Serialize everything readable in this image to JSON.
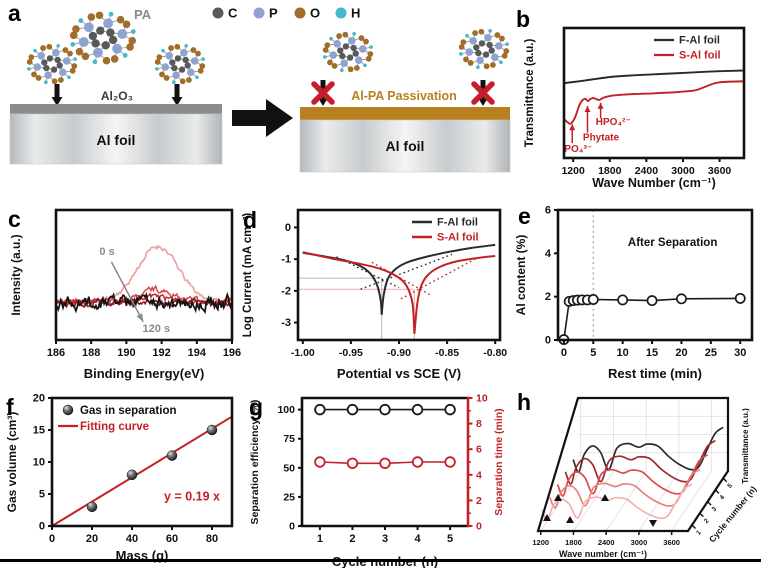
{
  "figure": {
    "panels": {
      "a": "a",
      "b": "b",
      "c": "c",
      "d": "d",
      "e": "e",
      "f": "f",
      "g": "g",
      "h": "h"
    }
  },
  "panel_a": {
    "pa_label": "PA",
    "atom_legend": [
      {
        "label": "C",
        "color": "#58595b"
      },
      {
        "label": "P",
        "color": "#8fa3d0"
      },
      {
        "label": "O",
        "color": "#a06e2a"
      },
      {
        "label": "H",
        "color": "#45b8c9"
      }
    ],
    "left": {
      "layer_label": "Al₂O₃",
      "substrate_label": "Al foil"
    },
    "right": {
      "passivation_label": "Al-PA Passivation",
      "substrate_label": "Al foil"
    }
  },
  "chart_data": [
    {
      "id": "b",
      "type": "line",
      "xlabel": "Wave Number (cm⁻¹)",
      "ylabel": "Transmittance (a.u.)",
      "xlim": [
        1050,
        4000
      ],
      "xticks": [
        1200,
        1800,
        2400,
        3000,
        3600
      ],
      "ylim": [
        0,
        1
      ],
      "legend": [
        {
          "name": "F-Al foil",
          "color": "#2a2a2a"
        },
        {
          "name": "S-Al foil",
          "color": "#c22126"
        }
      ],
      "series": [
        {
          "name": "F-Al foil",
          "color": "#2a2a2a",
          "points": [
            [
              1050,
              0.575
            ],
            [
              1200,
              0.585
            ],
            [
              1400,
              0.597
            ],
            [
              1600,
              0.61
            ],
            [
              1800,
              0.623
            ],
            [
              2000,
              0.631
            ],
            [
              2400,
              0.641
            ],
            [
              2800,
              0.65
            ],
            [
              3200,
              0.659
            ],
            [
              3600,
              0.668
            ],
            [
              4000,
              0.673
            ]
          ]
        },
        {
          "name": "S-Al foil",
          "color": "#c22126",
          "points": [
            [
              1050,
              0.3
            ],
            [
              1100,
              0.278
            ],
            [
              1150,
              0.263
            ],
            [
              1200,
              0.285
            ],
            [
              1250,
              0.335
            ],
            [
              1300,
              0.405
            ],
            [
              1350,
              0.443
            ],
            [
              1400,
              0.455
            ],
            [
              1440,
              0.438
            ],
            [
              1480,
              0.453
            ],
            [
              1530,
              0.462
            ],
            [
              1580,
              0.452
            ],
            [
              1630,
              0.447
            ],
            [
              1690,
              0.462
            ],
            [
              1760,
              0.472
            ],
            [
              1850,
              0.48
            ],
            [
              2000,
              0.487
            ],
            [
              2200,
              0.492
            ],
            [
              2500,
              0.497
            ],
            [
              2800,
              0.504
            ],
            [
              3000,
              0.511
            ],
            [
              3200,
              0.521
            ],
            [
              3350,
              0.545
            ],
            [
              3500,
              0.572
            ],
            [
              3650,
              0.585
            ],
            [
              4000,
              0.59
            ]
          ]
        }
      ],
      "annotations": [
        {
          "text": "PO₄³⁻",
          "label_x": 1055,
          "label_y": 0.045,
          "arrow_x": 1185,
          "arrow_y1": 0.115,
          "arrow_y2": 0.26
        },
        {
          "text": "Phytate",
          "label_x": 1360,
          "label_y": 0.135,
          "arrow_x": 1435,
          "arrow_y1": 0.195,
          "arrow_y2": 0.4
        },
        {
          "text": "HPO₄²⁻",
          "label_x": 1570,
          "label_y": 0.255,
          "arrow_x": 1650,
          "arrow_y1": 0.305,
          "arrow_y2": 0.425
        }
      ]
    },
    {
      "id": "c",
      "type": "line",
      "xlabel": "Binding Energy(eV)",
      "ylabel": "Intensity (a.u.)",
      "xlim": [
        186,
        196
      ],
      "xticks": [
        186,
        188,
        190,
        192,
        194,
        196
      ],
      "ylim": [
        0,
        1
      ],
      "series": [
        {
          "name": "0 s",
          "color": "#eda3a1",
          "baseline": 0.3,
          "amp": 0.42,
          "center": 191.8,
          "sigma": 1.15,
          "noise": 0.016,
          "width": 1.7
        },
        {
          "name": "",
          "color": "#d4494e",
          "baseline": 0.3,
          "amp": 0.09,
          "center": 191.6,
          "sigma": 0.9,
          "noise": 0.02,
          "width": 1.5
        },
        {
          "name": "",
          "color": "#c1272d",
          "baseline": 0.29,
          "amp": 0.045,
          "center": 191.4,
          "sigma": 0.85,
          "noise": 0.018,
          "width": 1.5
        },
        {
          "name": "",
          "color": "#8c1c21",
          "baseline": 0.285,
          "amp": 0,
          "center": 191.5,
          "sigma": 1,
          "noise": 0.022,
          "width": 1.5
        },
        {
          "name": "120 s",
          "color": "#141414",
          "baseline": 0.29,
          "amp": 0,
          "center": 191,
          "sigma": 1,
          "noise": 0.045,
          "width": 1.7
        }
      ],
      "annotations": [
        {
          "text": "0 s",
          "x": 188.9,
          "y": 0.655
        },
        {
          "text": "120 s",
          "x": 191.7,
          "y": 0.06
        }
      ],
      "arrow": {
        "x1": 189.15,
        "y1": 0.6,
        "x2": 190.95,
        "y2": 0.14,
        "color": "#8a8a8a"
      }
    },
    {
      "id": "d",
      "type": "line",
      "xlabel": "Potential vs SCE (V)",
      "ylabel": "Log Current (mA cm⁻²)",
      "xlim": [
        -1.005,
        -0.795
      ],
      "xticks": [
        -1,
        -0.95,
        -0.9,
        -0.85,
        -0.8
      ],
      "xtick_labels": [
        "-1.00",
        "-0.95",
        "-0.90",
        "-0.85",
        "-0.80"
      ],
      "ylim": [
        -3.55,
        0.55
      ],
      "yticks": [
        0,
        -1,
        -2,
        -3
      ],
      "legend": [
        {
          "name": "F-Al foil",
          "color": "#2a2a2a"
        },
        {
          "name": "S-Al foil",
          "color": "#c22126"
        }
      ],
      "series": [
        {
          "name": "F-Al foil",
          "color": "#2a2a2a",
          "left": [
            [
              -1,
              -0.8
            ],
            [
              -0.975,
              -0.93
            ],
            [
              -0.955,
              -1.05
            ],
            [
              -0.94,
              -1.22
            ],
            [
              -0.93,
              -1.45
            ],
            [
              -0.923,
              -1.8
            ],
            [
              -0.919,
              -2.3
            ],
            [
              -0.918,
              -2.75
            ]
          ],
          "right": [
            [
              -0.918,
              -2.75
            ],
            [
              -0.916,
              -2.15
            ],
            [
              -0.912,
              -1.65
            ],
            [
              -0.905,
              -1.35
            ],
            [
              -0.893,
              -1.12
            ],
            [
              -0.875,
              -0.95
            ],
            [
              -0.85,
              -0.78
            ],
            [
              -0.825,
              -0.65
            ],
            [
              -0.8,
              -0.55
            ]
          ]
        },
        {
          "name": "S-Al foil",
          "color": "#c22126",
          "left": [
            [
              -1,
              -0.78
            ],
            [
              -0.97,
              -0.98
            ],
            [
              -0.945,
              -1.12
            ],
            [
              -0.92,
              -1.3
            ],
            [
              -0.902,
              -1.55
            ],
            [
              -0.892,
              -1.85
            ],
            [
              -0.886,
              -2.4
            ],
            [
              -0.884,
              -3.35
            ]
          ],
          "right": [
            [
              -0.884,
              -3.35
            ],
            [
              -0.881,
              -2.4
            ],
            [
              -0.877,
              -1.85
            ],
            [
              -0.87,
              -1.5
            ],
            [
              -0.858,
              -1.25
            ],
            [
              -0.84,
              -1.07
            ],
            [
              -0.82,
              -0.97
            ],
            [
              -0.8,
              -0.9
            ]
          ]
        }
      ],
      "tafel_lines": [
        {
          "color": "#2a2a2a",
          "x1": -0.965,
          "y1": -0.93,
          "x2": -0.9,
          "y2": -1.9
        },
        {
          "color": "#2a2a2a",
          "x1": -0.94,
          "y1": -1.95,
          "x2": -0.845,
          "y2": -0.85
        },
        {
          "color": "#c22126",
          "x1": -0.928,
          "y1": -1.1,
          "x2": -0.866,
          "y2": -2.15
        },
        {
          "color": "#c22126",
          "x1": -0.898,
          "y1": -2.25,
          "x2": -0.818,
          "y2": -0.95
        }
      ],
      "ref_lines": [
        {
          "color": "#bfbfbf",
          "v": -0.918,
          "i": -1.6
        },
        {
          "color": "#f0b6b8",
          "v": -0.884,
          "i": -1.95
        }
      ]
    },
    {
      "id": "e",
      "type": "line",
      "xlabel": "Rest time (min)",
      "ylabel": "Al content (%)",
      "xlim": [
        -1,
        32
      ],
      "xticks": [
        0,
        5,
        10,
        15,
        20,
        25,
        30
      ],
      "ylim": [
        0,
        6
      ],
      "yticks": [
        0,
        2,
        4,
        6
      ],
      "note": {
        "text": "After Separation",
        "x": 18.5,
        "y": 4.35
      },
      "vline": {
        "x": 5,
        "color": "#aaaaaa"
      },
      "series": [
        {
          "name": "Al content",
          "color": "#1a1a1a",
          "marker": "circle-open",
          "points": [
            [
              0,
              0.02
            ],
            [
              0.9,
              1.78
            ],
            [
              1.6,
              1.82
            ],
            [
              2.3,
              1.84
            ],
            [
              3.1,
              1.85
            ],
            [
              4,
              1.85
            ],
            [
              5,
              1.87
            ],
            [
              10,
              1.85
            ],
            [
              15,
              1.82
            ],
            [
              20,
              1.9
            ],
            [
              30,
              1.92
            ]
          ]
        }
      ]
    },
    {
      "id": "f",
      "type": "scatter",
      "xlabel": "Mass (g)",
      "ylabel": "Gas volume (cm³)",
      "xlim": [
        0,
        90
      ],
      "xticks": [
        0,
        20,
        40,
        60,
        80
      ],
      "ylim": [
        0,
        20
      ],
      "yticks": [
        0,
        5,
        10,
        15,
        20
      ],
      "legend": [
        {
          "name": "Gas in separation",
          "type": "sphere"
        },
        {
          "name": "Fitting curve",
          "type": "line",
          "color": "#c22126"
        }
      ],
      "points": [
        [
          20,
          3
        ],
        [
          40,
          8
        ],
        [
          60,
          11
        ],
        [
          80,
          15
        ]
      ],
      "fit": {
        "slope": 0.19,
        "label": "y = 0.19 x",
        "color": "#c22126",
        "label_x": 56,
        "label_y": 4
      }
    },
    {
      "id": "g",
      "type": "line",
      "xlabel": "Cycle number (n)",
      "ylabel_left": "Separation efficiency (%)",
      "ylabel_right": "Separation time (min)",
      "xlim": [
        0.45,
        5.55
      ],
      "xticks": [
        1,
        2,
        3,
        4,
        5
      ],
      "ylim_left": [
        0,
        110
      ],
      "yticks_left": [
        0,
        25,
        50,
        75,
        100
      ],
      "ylim_right": [
        0,
        10
      ],
      "yticks_right": [
        0,
        2,
        4,
        6,
        8,
        10
      ],
      "right_color": "#c22126",
      "series": [
        {
          "name": "Separation efficiency",
          "axis": "left",
          "color": "#1a1a1a",
          "points": [
            [
              1,
              100
            ],
            [
              2,
              100
            ],
            [
              3,
              100
            ],
            [
              4,
              100
            ],
            [
              5,
              100
            ]
          ]
        },
        {
          "name": "Separation time",
          "axis": "right",
          "color": "#c22126",
          "points": [
            [
              1,
              5
            ],
            [
              2,
              4.9
            ],
            [
              3,
              4.9
            ],
            [
              4,
              5
            ],
            [
              5,
              5
            ]
          ]
        }
      ]
    },
    {
      "id": "h",
      "type": "waterfall3d",
      "xlabel": "Wave number (cm⁻¹)",
      "depth_label": "Cycle number (n)",
      "zlabel": "Transmittance (a.u.)",
      "xlim": [
        1150,
        3900
      ],
      "xticks": [
        1200,
        1800,
        2400,
        3000,
        3600
      ],
      "cycles": [
        "1",
        "2",
        "3",
        "4",
        "5"
      ],
      "colors": [
        "#f2b3ae",
        "#e8827f",
        "#d84a4e",
        "#a1282d",
        "#2b2b2b"
      ],
      "shape": [
        [
          1150,
          0.3
        ],
        [
          1250,
          0.1
        ],
        [
          1350,
          0.38
        ],
        [
          1500,
          0.52
        ],
        [
          1650,
          0.42
        ],
        [
          1800,
          0.14
        ],
        [
          1950,
          0.48
        ],
        [
          2150,
          0.56
        ],
        [
          2350,
          0.5
        ],
        [
          2500,
          0.55
        ],
        [
          2700,
          0.52
        ],
        [
          2900,
          0.35
        ],
        [
          3100,
          0.22
        ],
        [
          3300,
          0.14
        ],
        [
          3450,
          0.18
        ],
        [
          3600,
          0.45
        ],
        [
          3750,
          0.72
        ],
        [
          3900,
          0.82
        ]
      ],
      "markers": [
        {
          "dir": "up",
          "x": 42,
          "y": 132
        },
        {
          "dir": "up",
          "x": 65,
          "y": 134
        },
        {
          "dir": "up",
          "x": 53,
          "y": 112
        },
        {
          "dir": "up",
          "x": 100,
          "y": 112
        },
        {
          "dir": "down",
          "x": 148,
          "y": 137
        }
      ]
    }
  ]
}
